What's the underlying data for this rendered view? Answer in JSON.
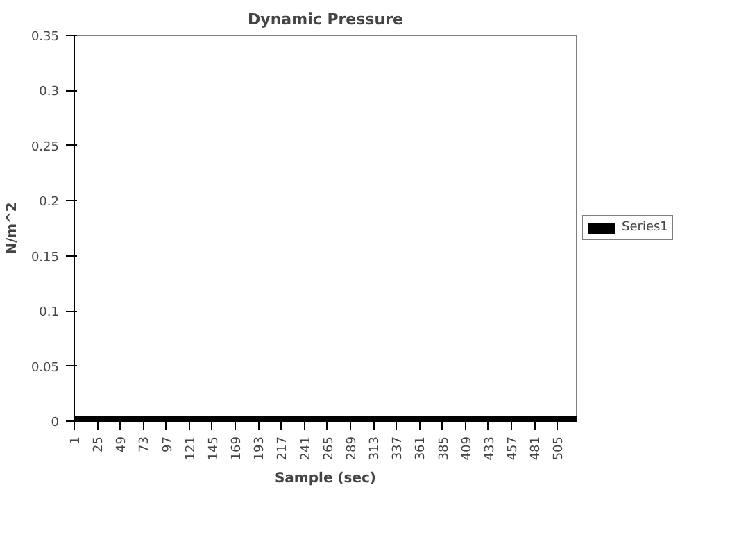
{
  "chart_data": {
    "type": "line",
    "title": "Dynamic Pressure",
    "xlabel": "Sample (sec)",
    "ylabel": "N/m^2",
    "x": [
      1,
      525
    ],
    "series": [
      {
        "name": "Series1",
        "color": "#000000",
        "values": [
          0,
          0
        ]
      }
    ],
    "xlim": [
      1,
      525
    ],
    "xticks": [
      1,
      25,
      49,
      73,
      97,
      121,
      145,
      169,
      193,
      217,
      241,
      265,
      289,
      313,
      337,
      361,
      385,
      409,
      433,
      457,
      481,
      505
    ],
    "ylim": [
      0,
      0.35
    ],
    "yticks": [
      0,
      0.05,
      0.1,
      0.15,
      0.2,
      0.25,
      0.3,
      0.35
    ],
    "grid": false,
    "legend": "right",
    "line_style": "solid"
  }
}
